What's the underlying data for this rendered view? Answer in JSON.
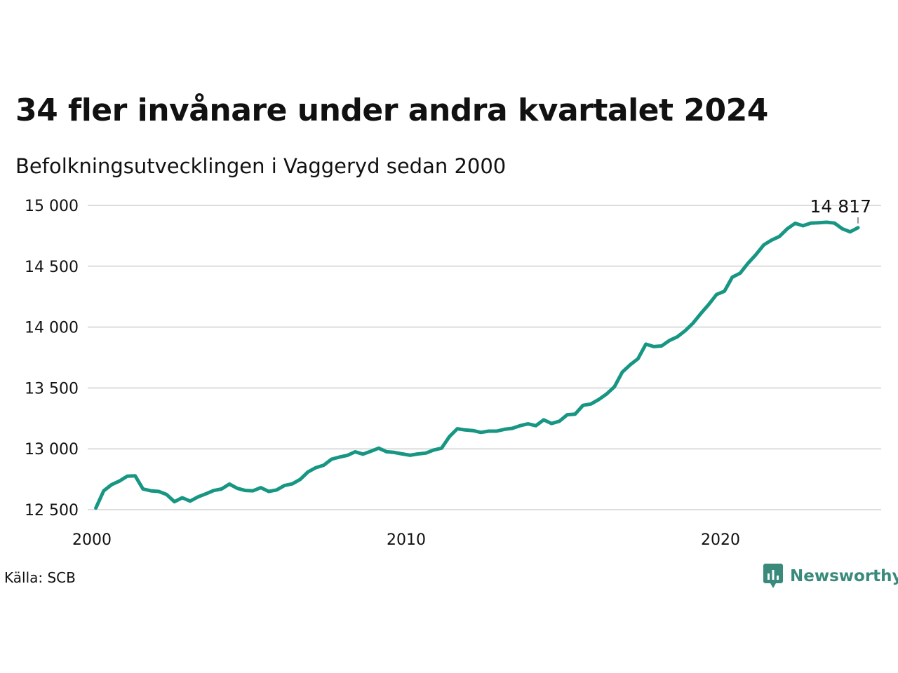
{
  "title": "34 fler invånare under andra kvartalet 2024",
  "subtitle": "Befolkningsutvecklingen i Vaggeryd sedan 2000",
  "source": "Källa: SCB",
  "brand": {
    "name": "Newsworthy",
    "color": "#3a8a7c",
    "icon": "newsworthy-logo-icon"
  },
  "colors": {
    "line": "#179683",
    "grid": "#dddddd",
    "text": "#111111"
  },
  "chart_data": {
    "type": "line",
    "xlim": [
      2000,
      2025
    ],
    "ylim": [
      12500,
      15000
    ],
    "x_ticks": [
      2000,
      2010,
      2020
    ],
    "x_tick_labels": [
      "2000",
      "2010",
      "2020"
    ],
    "y_ticks": [
      12500,
      13000,
      13500,
      14000,
      14500,
      15000
    ],
    "y_tick_labels": [
      "12 500",
      "13 000",
      "13 500",
      "14 000",
      "14 500",
      "15 000"
    ],
    "grid": true,
    "last_value_label": "14 817",
    "series": [
      {
        "x": [
          2000.125,
          2000.375,
          2000.625,
          2000.875,
          2001.125,
          2001.375,
          2001.625,
          2001.875,
          2002.125,
          2002.375,
          2002.625,
          2002.875,
          2003.125,
          2003.375,
          2003.625,
          2003.875,
          2004.125,
          2004.375,
          2004.625,
          2004.875,
          2005.125,
          2005.375,
          2005.625,
          2005.875,
          2006.125,
          2006.375,
          2006.625,
          2006.875,
          2007.125,
          2007.375,
          2007.625,
          2007.875,
          2008.125,
          2008.375,
          2008.625,
          2008.875,
          2009.125,
          2009.375,
          2009.625,
          2009.875,
          2010.125,
          2010.375,
          2010.625,
          2010.875,
          2011.125,
          2011.375,
          2011.625,
          2011.875,
          2012.125,
          2012.375,
          2012.625,
          2012.875,
          2013.125,
          2013.375,
          2013.625,
          2013.875,
          2014.125,
          2014.375,
          2014.625,
          2014.875,
          2015.125,
          2015.375,
          2015.625,
          2015.875,
          2016.125,
          2016.375,
          2016.625,
          2016.875,
          2017.125,
          2017.375,
          2017.625,
          2017.875,
          2018.125,
          2018.375,
          2018.625,
          2018.875,
          2019.125,
          2019.375,
          2019.625,
          2019.875,
          2020.125,
          2020.375,
          2020.625,
          2020.875,
          2021.125,
          2021.375,
          2021.625,
          2021.875,
          2022.125,
          2022.375,
          2022.625,
          2022.875,
          2023.125,
          2023.375,
          2023.625,
          2023.875,
          2024.125,
          2024.375
        ],
        "y": [
          12513,
          12655,
          12705,
          12735,
          12775,
          12778,
          12670,
          12655,
          12650,
          12625,
          12565,
          12598,
          12570,
          12605,
          12630,
          12657,
          12670,
          12710,
          12675,
          12658,
          12655,
          12681,
          12650,
          12662,
          12698,
          12712,
          12748,
          12810,
          12845,
          12865,
          12915,
          12932,
          12946,
          12975,
          12956,
          12980,
          13005,
          12976,
          12970,
          12958,
          12947,
          12958,
          12965,
          12990,
          13005,
          13100,
          13165,
          13155,
          13150,
          13135,
          13145,
          13145,
          13160,
          13168,
          13190,
          13205,
          13190,
          13238,
          13208,
          13227,
          13280,
          13285,
          13357,
          13368,
          13405,
          13450,
          13510,
          13630,
          13690,
          13740,
          13860,
          13840,
          13845,
          13890,
          13920,
          13970,
          14032,
          14112,
          14186,
          14268,
          14295,
          14410,
          14443,
          14525,
          14595,
          14675,
          14715,
          14745,
          14808,
          14853,
          14833,
          14855,
          14858,
          14862,
          14855,
          14808,
          14783,
          14817
        ]
      }
    ]
  }
}
